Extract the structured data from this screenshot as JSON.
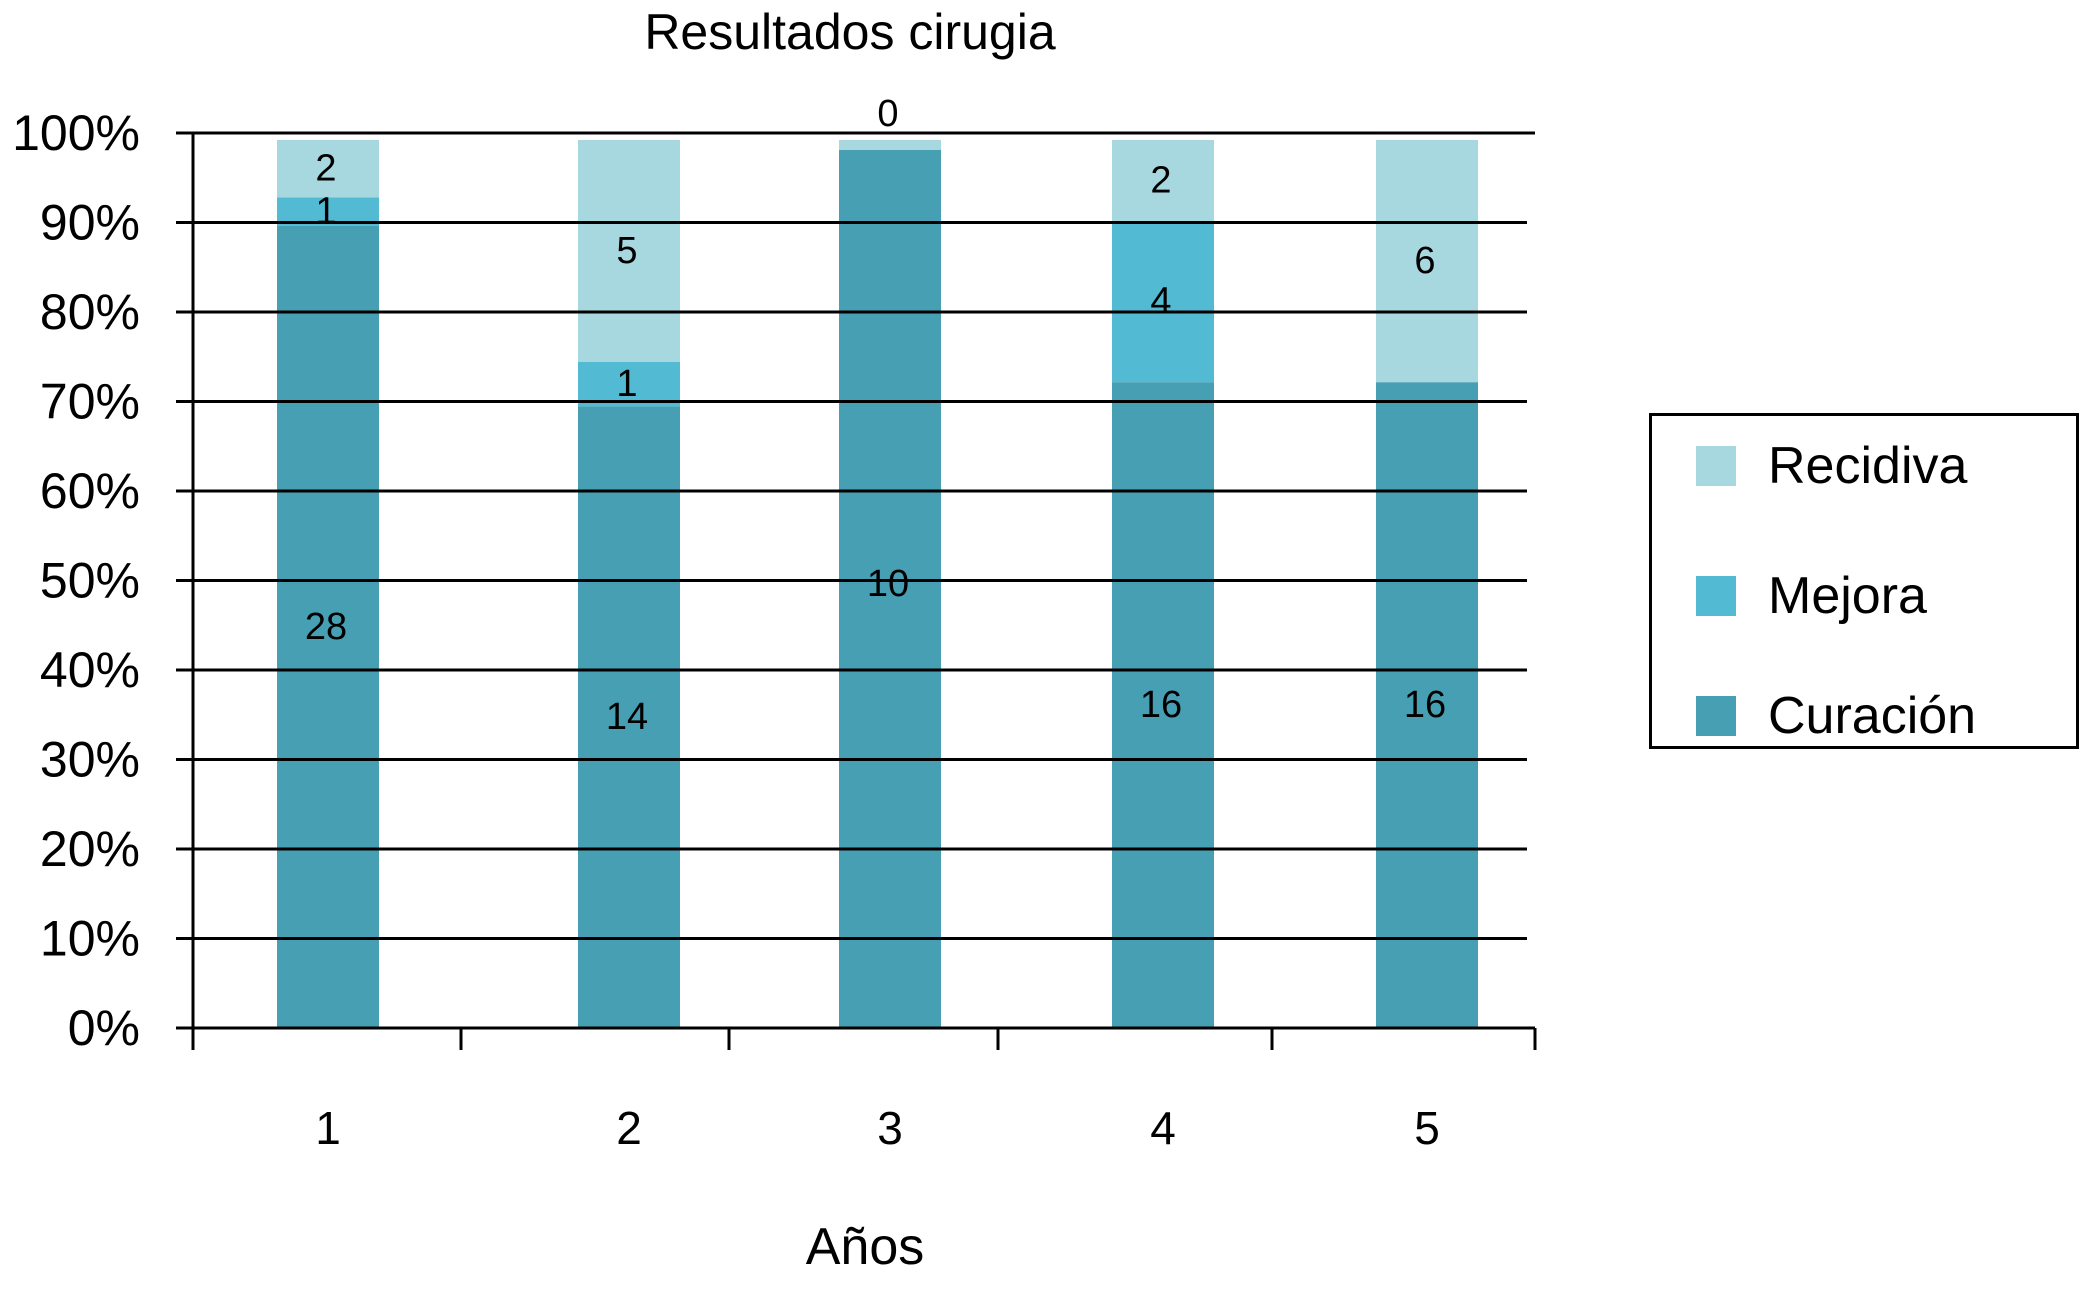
{
  "chart_data": {
    "type": "bar",
    "stacked": true,
    "title": "Resultados cirugia",
    "xlabel": "Años",
    "ylabel": "",
    "ylim": [
      0,
      100
    ],
    "y_ticks": [
      "0%",
      "10%",
      "20%",
      "30%",
      "40%",
      "50%",
      "60%",
      "70%",
      "80%",
      "90%",
      "100%"
    ],
    "categories": [
      "1",
      "2",
      "3",
      "4",
      "5"
    ],
    "series": [
      {
        "name": "Curación",
        "color": "#469fb2",
        "values": [
          28,
          14,
          10,
          16,
          16
        ],
        "labels": [
          "28",
          "14",
          "10",
          "16",
          "16"
        ]
      },
      {
        "name": "Mejora",
        "color": "#52bbd3",
        "values": [
          1,
          1,
          0,
          4,
          0
        ],
        "labels": [
          "1",
          "1",
          "",
          "4",
          ""
        ]
      },
      {
        "name": "Recidiva",
        "color": "#a7d7df",
        "values": [
          2,
          5,
          0,
          2,
          6
        ],
        "labels": [
          "2",
          "5",
          "0",
          "2",
          "6"
        ]
      }
    ],
    "grid": true,
    "legend_position": "right",
    "legend_order": [
      "Recidiva",
      "Mejora",
      "Curación"
    ]
  }
}
